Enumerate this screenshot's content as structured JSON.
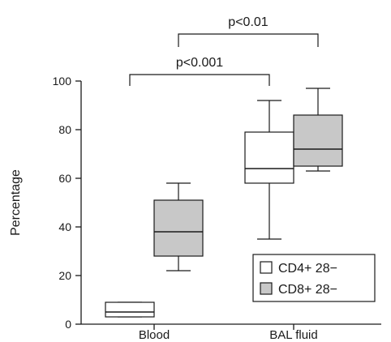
{
  "chart_data": {
    "type": "box",
    "title": "",
    "xlabel": "",
    "ylabel": "Percentage",
    "ylim": [
      0,
      100
    ],
    "yticks": [
      "0",
      "20",
      "40",
      "60",
      "80",
      "100"
    ],
    "categories": [
      "Blood",
      "BAL fluid"
    ],
    "series": [
      {
        "name": "CD4+ 28−",
        "fill": "#ffffff",
        "boxes": [
          {
            "category": "Blood",
            "min": 3,
            "q1": 3,
            "median": 5,
            "q3": 9,
            "max": 9
          },
          {
            "category": "BAL fluid",
            "min": 35,
            "q1": 58,
            "median": 64,
            "q3": 79,
            "max": 92
          }
        ]
      },
      {
        "name": "CD8+ 28−",
        "fill": "#c8c8c8",
        "boxes": [
          {
            "category": "Blood",
            "min": 22,
            "q1": 28,
            "median": 38,
            "q3": 51,
            "max": 58
          },
          {
            "category": "BAL fluid",
            "min": 63,
            "q1": 65,
            "median": 72,
            "q3": 86,
            "max": 97
          }
        ]
      }
    ],
    "annotations": [
      {
        "label": "p<0.001",
        "from": "Blood / CD4+ 28−",
        "to": "BAL fluid / CD4+ 28−"
      },
      {
        "label": "p<0.01",
        "from": "Blood / CD8+ 28−",
        "to": "BAL fluid / CD8+ 28−"
      }
    ],
    "legend": {
      "position": "bottom-right"
    }
  },
  "colors": {
    "ink": "#1a1a1a",
    "gray_fill": "#c8c8c8"
  }
}
